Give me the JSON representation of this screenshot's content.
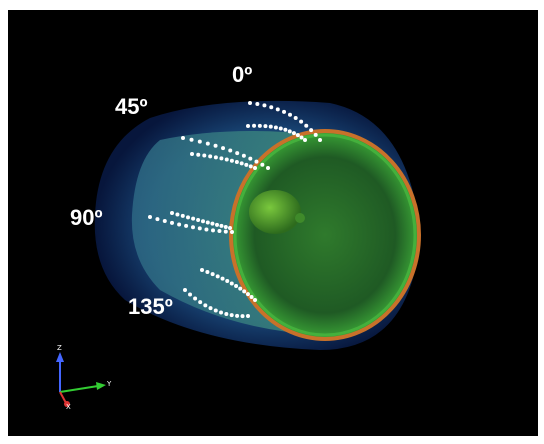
{
  "angle_labels": [
    "0º",
    "45º",
    "90º",
    "135º"
  ],
  "axes": {
    "z": "Z",
    "y": "Y",
    "x": "X"
  }
}
